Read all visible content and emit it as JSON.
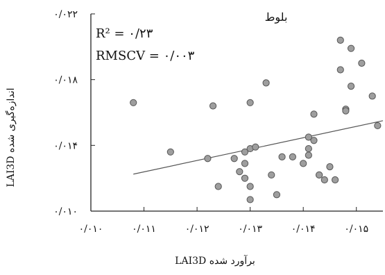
{
  "chart_data": {
    "type": "scatter",
    "title": "بلوط",
    "xlabel": "LAI3D برآورد شده",
    "ylabel": "LAI3D اندازه‌گیری شده",
    "xlim": [
      0.01,
      0.0155
    ],
    "ylim": [
      0.01,
      0.022
    ],
    "x_ticks": [
      0.01,
      0.011,
      0.012,
      0.013,
      0.014,
      0.015
    ],
    "x_tick_labels": [
      "۰/۰۱۰",
      "۰/۰۱۱",
      "۰/۰۱۲",
      "۰/۰۱۳",
      "۰/۰۱۴",
      "۰/۰۱۵"
    ],
    "y_ticks": [
      0.01,
      0.014,
      0.018,
      0.022
    ],
    "y_tick_labels": [
      "۰/۰۱۰",
      "۰/۰۱۴",
      "۰/۰۱۸",
      "۰/۰۲۲"
    ],
    "grid": false,
    "stats": {
      "r2_label": "R² = ۰/۲۳",
      "rmscv_label": "RMSCV = ۰/۰۰۳"
    },
    "marker_color": "#9e9e9e",
    "marker_edge_color": "#555555",
    "trendline": {
      "x": [
        0.0108,
        0.0155
      ],
      "y": [
        0.01225,
        0.0155
      ]
    },
    "series": [
      {
        "x": [
          0.0108,
          0.0115,
          0.0123,
          0.0122,
          0.0124,
          0.0127,
          0.0128,
          0.0129,
          0.0129,
          0.0129,
          0.013,
          0.013,
          0.013,
          0.013,
          0.0131,
          0.0133,
          0.0134,
          0.0135,
          0.0136,
          0.0138,
          0.014,
          0.0141,
          0.0141,
          0.0141,
          0.0142,
          0.0142,
          0.0143,
          0.0143,
          0.0144,
          0.0145,
          0.0146,
          0.0147,
          0.0147,
          0.0148,
          0.0148,
          0.0149,
          0.0149,
          0.0151,
          0.0153,
          0.0154
        ],
        "y": [
          0.0166,
          0.0136,
          0.0164,
          0.0132,
          0.0115,
          0.0132,
          0.0124,
          0.0136,
          0.0129,
          0.012,
          0.0166,
          0.0138,
          0.0115,
          0.0107,
          0.0139,
          0.0178,
          0.0122,
          0.011,
          0.0133,
          0.0133,
          0.0129,
          0.0134,
          0.0138,
          0.0145,
          0.0159,
          0.0143,
          0.0122,
          0.0122,
          0.0119,
          0.0127,
          0.0119,
          0.0204,
          0.0186,
          0.0162,
          0.0161,
          0.0176,
          0.0199,
          0.019,
          0.017,
          0.0152
        ]
      }
    ]
  }
}
